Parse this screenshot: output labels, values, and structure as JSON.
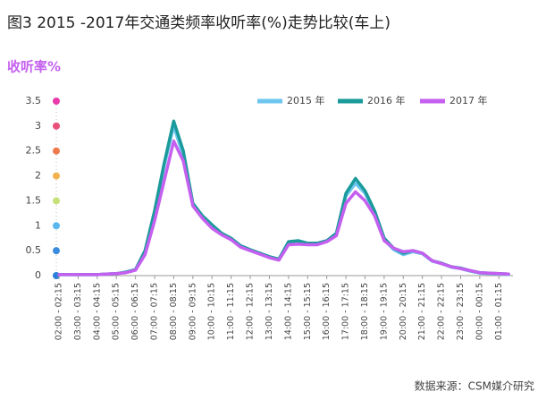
{
  "chart_data": {
    "type": "line",
    "title": "图3 2015 -2017年交通类频率收听率(%)走势比较(车上)",
    "y_label": "收听率%",
    "source": "数据来源：CSM媒介研究",
    "categories": [
      "02:00 - 02:15",
      null,
      "03:00 - 03:15",
      null,
      "04:00 - 04:15",
      null,
      "05:00 - 05:15",
      null,
      "06:00 - 06:15",
      null,
      "07:00 - 07:15",
      null,
      "08:00 - 08:15",
      null,
      "09:00 - 09:15",
      null,
      "10:00 - 10:15",
      null,
      "11:00 - 11:15",
      null,
      "12:00 - 12:15",
      null,
      "13:00 - 13:15",
      null,
      "14:00 - 14:15",
      null,
      "15:00 - 15:15",
      null,
      "16:00 - 16:15",
      null,
      "17:00 - 17:15",
      null,
      "18:00 - 18:15",
      null,
      "19:00 - 19:15",
      null,
      "20:00 - 20:15",
      null,
      "21:00 - 21:15",
      null,
      "22:00 - 22:15",
      null,
      "23:00 - 23:15",
      null,
      "00:00 - 00:15",
      null,
      "01:00 - 01:15",
      null
    ],
    "series": [
      {
        "name": "2015 年",
        "color": "#6ec6f0",
        "values": [
          0.02,
          0.02,
          0.02,
          0.02,
          0.02,
          0.03,
          0.04,
          0.07,
          0.12,
          0.48,
          1.25,
          2.2,
          3.0,
          2.4,
          1.42,
          1.18,
          1.0,
          0.84,
          0.74,
          0.58,
          0.5,
          0.44,
          0.37,
          0.32,
          0.66,
          0.68,
          0.64,
          0.64,
          0.69,
          0.83,
          1.6,
          1.85,
          1.65,
          1.25,
          0.72,
          0.52,
          0.42,
          0.48,
          0.44,
          0.29,
          0.24,
          0.17,
          0.14,
          0.09,
          0.05,
          0.04,
          0.03,
          0.02
        ]
      },
      {
        "name": "2016 年",
        "color": "#1a9a9a",
        "values": [
          0.02,
          0.02,
          0.02,
          0.02,
          0.02,
          0.03,
          0.04,
          0.07,
          0.12,
          0.5,
          1.3,
          2.25,
          3.1,
          2.5,
          1.45,
          1.2,
          1.02,
          0.85,
          0.75,
          0.6,
          0.52,
          0.45,
          0.38,
          0.33,
          0.68,
          0.7,
          0.65,
          0.65,
          0.7,
          0.85,
          1.65,
          1.95,
          1.7,
          1.3,
          0.75,
          0.55,
          0.45,
          0.5,
          0.45,
          0.3,
          0.25,
          0.18,
          0.15,
          0.1,
          0.06,
          0.05,
          0.04,
          0.03
        ]
      },
      {
        "name": "2017 年",
        "color": "#c45ff0",
        "values": [
          0.02,
          0.02,
          0.02,
          0.02,
          0.02,
          0.03,
          0.04,
          0.06,
          0.11,
          0.42,
          1.1,
          1.9,
          2.7,
          2.3,
          1.4,
          1.15,
          0.95,
          0.82,
          0.72,
          0.57,
          0.5,
          0.43,
          0.36,
          0.31,
          0.62,
          0.63,
          0.62,
          0.62,
          0.68,
          0.8,
          1.45,
          1.68,
          1.5,
          1.2,
          0.7,
          0.55,
          0.48,
          0.5,
          0.45,
          0.3,
          0.24,
          0.18,
          0.14,
          0.1,
          0.06,
          0.05,
          0.04,
          0.03
        ]
      }
    ],
    "ylim": [
      0,
      3.5
    ],
    "yticks": [
      0,
      0.5,
      1,
      1.5,
      2,
      2.5,
      3,
      3.5
    ],
    "ytick_colors": [
      "#2a7fd8",
      "#3a8be0",
      "#5bb8ee",
      "#c8e07a",
      "#f2b24e",
      "#ee7a4e",
      "#e8507a",
      "#e83aa8"
    ],
    "legend": "top-right"
  }
}
